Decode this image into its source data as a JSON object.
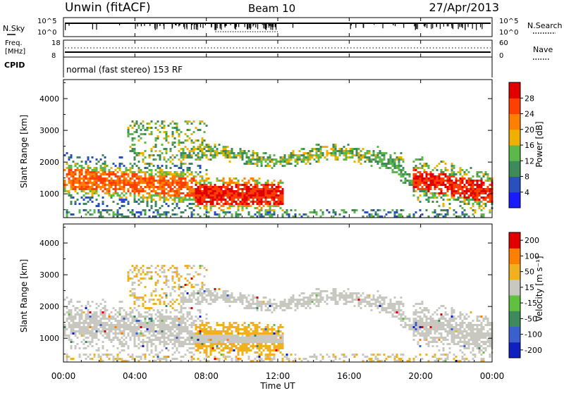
{
  "header": {
    "station": "Unwin (fitACF)",
    "beam": "Beam 10",
    "date": "27/Apr/2013"
  },
  "panels": {
    "nsky": {
      "label": "N.Sky",
      "right_label": "N.Search",
      "left_ticks": [
        "10^5",
        "10^0"
      ],
      "right_ticks": [
        "10^5",
        "10^0"
      ]
    },
    "freq": {
      "label_line1": "Freq.",
      "label_line2": "[MHz]",
      "right_label": "Nave",
      "left_ticks": [
        "18",
        "8"
      ],
      "right_ticks": [
        "60",
        "0"
      ]
    },
    "cpid": {
      "label": "CPID",
      "text": "normal (fast stereo) 153 RF"
    }
  },
  "chart_data": [
    {
      "type": "heatmap",
      "name": "power",
      "ylabel": "Slant Range [km]",
      "yticks": [
        1000,
        2000,
        3000,
        4000
      ],
      "ylim": [
        250,
        4600
      ],
      "xlim_hours": [
        0,
        24
      ],
      "colorbar": {
        "label": "Power [dB]",
        "ticks": [
          "4",
          "8",
          "12",
          "16",
          "20",
          "24",
          "28"
        ],
        "range": [
          0,
          32
        ],
        "colors": [
          "#1a1aff",
          "#2a4fbf",
          "#3f8a5a",
          "#5cb84a",
          "#f0b000",
          "#ff8000",
          "#ff4000",
          "#e00000"
        ]
      }
    },
    {
      "type": "heatmap",
      "name": "velocity",
      "ylabel": "Slant Range [km]",
      "yticks": [
        1000,
        2000,
        3000,
        4000
      ],
      "ylim": [
        250,
        4600
      ],
      "xlim_hours": [
        0,
        24
      ],
      "colorbar": {
        "label": "Velocity [m s⁻¹]",
        "ticks": [
          "200",
          "100",
          "50",
          "15",
          "-15",
          "-50",
          "-100",
          "-200"
        ],
        "colors": [
          "#1020c0",
          "#3a60d0",
          "#3f8a5a",
          "#60c040",
          "#c8c8c0",
          "#f0b020",
          "#ff8000",
          "#e00000"
        ]
      }
    }
  ],
  "xaxis": {
    "label": "Time UT",
    "ticks": [
      "00:00",
      "04:00",
      "08:00",
      "12:00",
      "16:00",
      "20:00",
      "00:00"
    ]
  }
}
